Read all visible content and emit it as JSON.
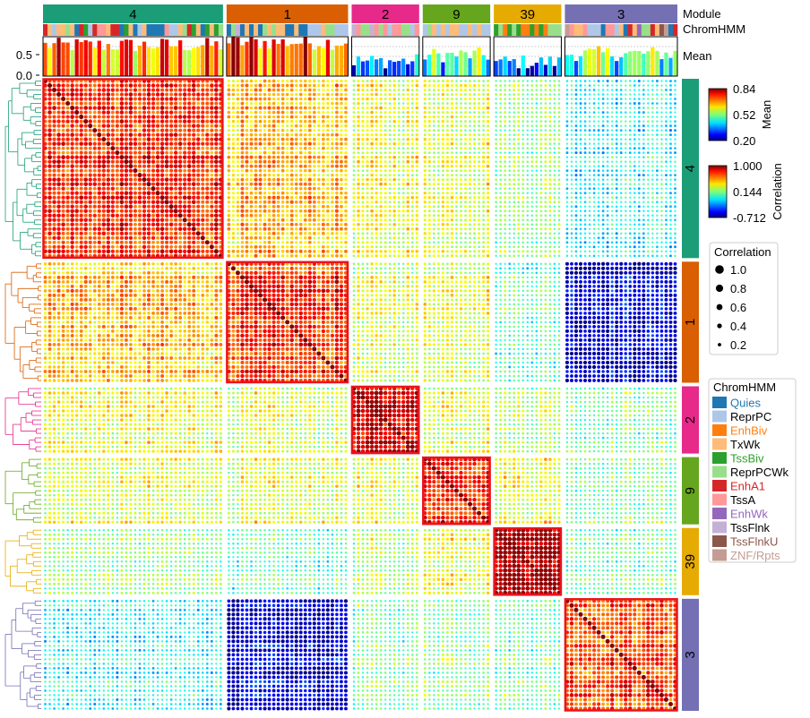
{
  "annotations": {
    "module_label": "Module",
    "chromhmm_label": "ChromHMM",
    "mean_label": "Mean"
  },
  "mean_axis": {
    "ticks": [
      "0.5",
      "0.0"
    ],
    "ylim": [
      0,
      0.84
    ]
  },
  "colorbars": {
    "mean": {
      "title": "Mean",
      "ticks": [
        "0.84",
        "0.52",
        "0.20"
      ],
      "range": [
        0.2,
        0.84
      ]
    },
    "correlation": {
      "title": "Correlation",
      "ticks": [
        "1.000",
        "0.144",
        "-0.712"
      ],
      "range": [
        -0.712,
        1.0
      ]
    }
  },
  "size_legend": {
    "title": "Correlation",
    "entries": [
      "1.0",
      "0.8",
      "0.6",
      "0.4",
      "0.2"
    ],
    "values": [
      1.0,
      0.8,
      0.6,
      0.4,
      0.2
    ]
  },
  "chromhmm_legend": {
    "title": "ChromHMM",
    "entries": [
      {
        "label": "Quies",
        "color": "#1f77b4",
        "text_color": "#1f77b4"
      },
      {
        "label": "ReprPC",
        "color": "#aec7e8",
        "text_color": "#000000"
      },
      {
        "label": "EnhBiv",
        "color": "#ff7f0e",
        "text_color": "#ff7f0e"
      },
      {
        "label": "TxWk",
        "color": "#ffbb78",
        "text_color": "#000000"
      },
      {
        "label": "TssBiv",
        "color": "#2ca02c",
        "text_color": "#2ca02c"
      },
      {
        "label": "ReprPCWk",
        "color": "#98df8a",
        "text_color": "#000000"
      },
      {
        "label": "EnhA1",
        "color": "#d62728",
        "text_color": "#d62728"
      },
      {
        "label": "TssA",
        "color": "#ff9896",
        "text_color": "#000000"
      },
      {
        "label": "EnhWk",
        "color": "#9467bd",
        "text_color": "#9467bd"
      },
      {
        "label": "TssFlnk",
        "color": "#c5b0d5",
        "text_color": "#000000"
      },
      {
        "label": "TssFlnkU",
        "color": "#8c564b",
        "text_color": "#8c564b"
      },
      {
        "label": "ZNF/Rpts",
        "color": "#c49c94",
        "text_color": "#c49c94"
      }
    ]
  },
  "chart_data": {
    "type": "heatmap",
    "modules": [
      {
        "label": "4",
        "color": "#1b9e77",
        "n": 40,
        "intra_corr": 0.62,
        "mean_level": 0.66
      },
      {
        "label": "1",
        "color": "#d95f02",
        "n": 27,
        "intra_corr": 0.6,
        "mean_level": 0.72
      },
      {
        "label": "2",
        "color": "#e7298a",
        "n": 15,
        "intra_corr": 0.75,
        "mean_level": 0.32
      },
      {
        "label": "9",
        "color": "#66a61e",
        "n": 15,
        "intra_corr": 0.7,
        "mean_level": 0.45
      },
      {
        "label": "39",
        "color": "#e6ab02",
        "n": 15,
        "intra_corr": 0.88,
        "mean_level": 0.3
      },
      {
        "label": "3",
        "color": "#7570b3",
        "n": 25,
        "intra_corr": 0.6,
        "mean_level": 0.48
      }
    ],
    "between_module_corr": [
      [
        null,
        0.45,
        0.3,
        0.3,
        0.15,
        -0.05
      ],
      [
        0.45,
        null,
        0.25,
        0.3,
        0.05,
        -0.55
      ],
      [
        0.3,
        0.25,
        null,
        0.3,
        0.2,
        0.1
      ],
      [
        0.3,
        0.3,
        0.3,
        null,
        0.35,
        0.15
      ],
      [
        0.15,
        0.05,
        0.2,
        0.35,
        null,
        0.1
      ],
      [
        -0.05,
        -0.55,
        0.1,
        0.15,
        0.1,
        null
      ]
    ],
    "diagonal_value": 1.0,
    "mean_range": [
      0.2,
      0.84
    ],
    "corr_range": [
      -0.712,
      1.0
    ]
  }
}
